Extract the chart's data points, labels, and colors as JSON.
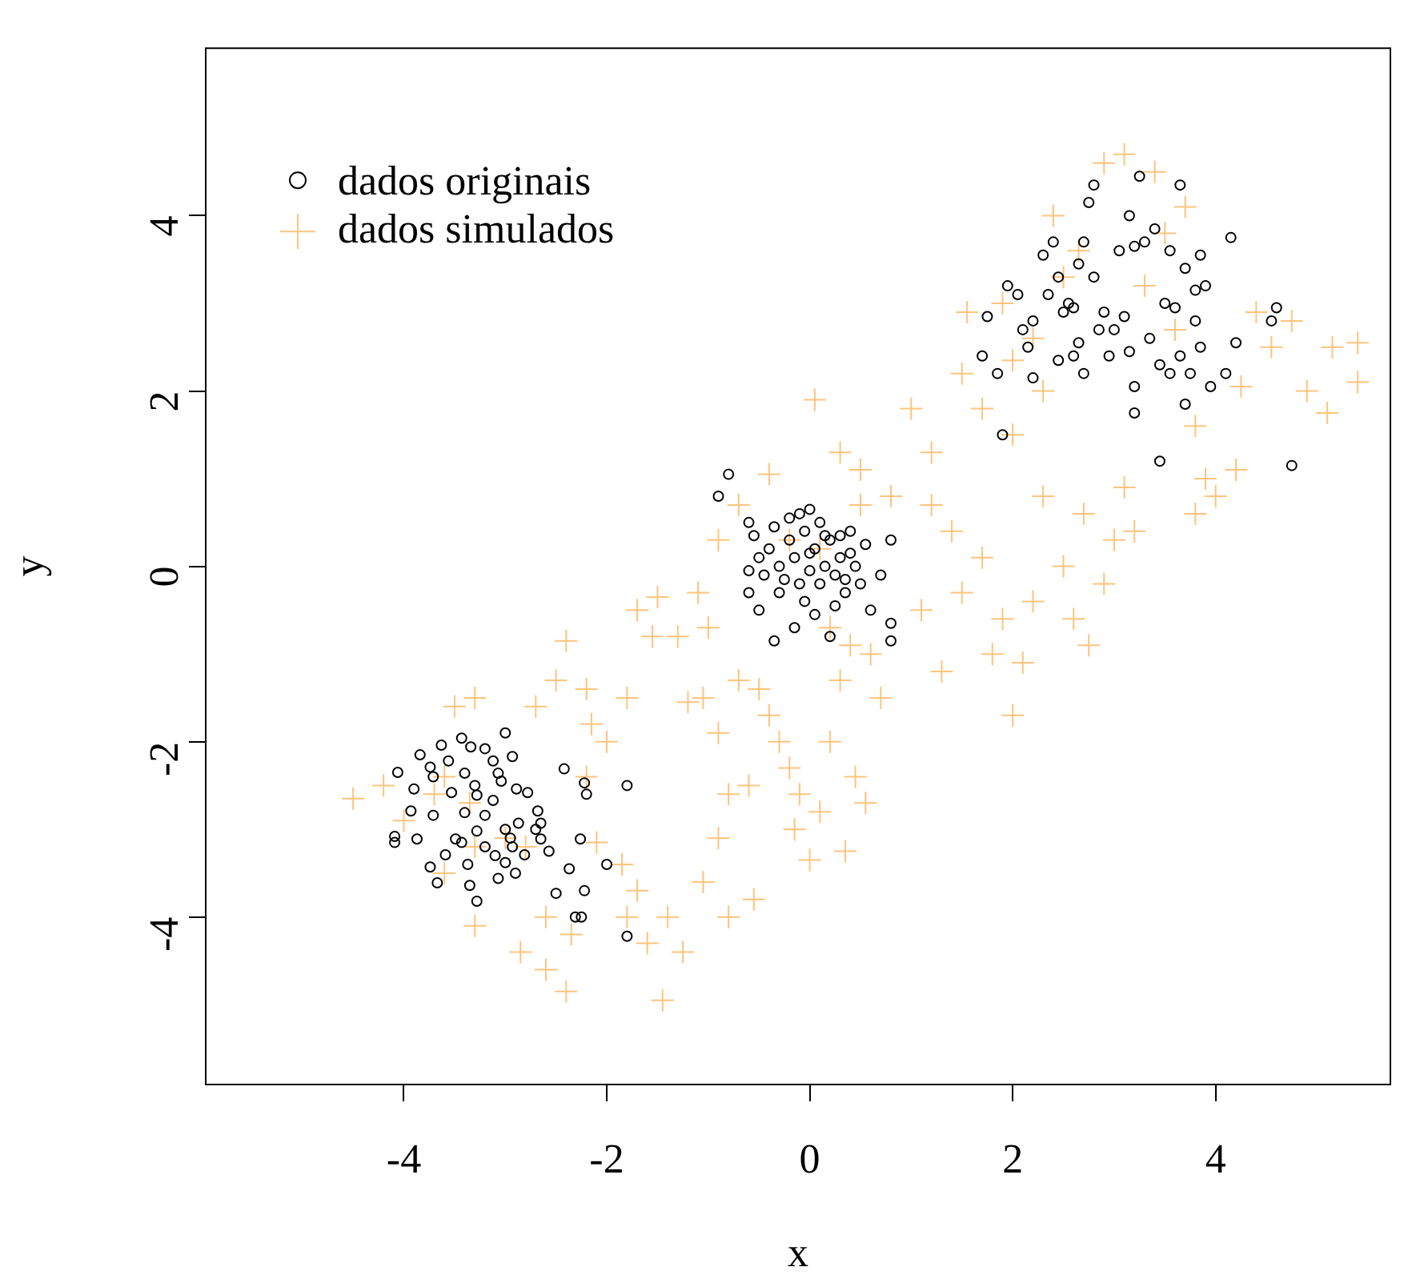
{
  "chart_data": {
    "type": "scatter",
    "xlabel": "x",
    "ylabel": "y",
    "xlim": [
      -5.96,
      5.73
    ],
    "ylim": [
      -5.92,
      5.92
    ],
    "xticks": [
      -4,
      -2,
      0,
      2,
      4
    ],
    "yticks": [
      -4,
      -2,
      0,
      2,
      4
    ],
    "legend": "top left",
    "series": [
      {
        "name": "dados originais",
        "color": "#000000",
        "marker": "circle",
        "x": [
          -4.09,
          -4.09,
          -4.06,
          -3.84,
          -3.74,
          -3.71,
          -3.9,
          -3.56,
          -3.43,
          -3.4,
          -3.34,
          -3.28,
          -3.2,
          -3.12,
          -3.07,
          -3.0,
          -2.93,
          -2.89,
          -2.78,
          -2.68,
          -2.65,
          -2.57,
          -2.42,
          -2.5,
          -2.31,
          -2.37,
          -2.22,
          -2.26,
          -3.87,
          -3.74,
          -3.67,
          -3.59,
          -3.43,
          -3.37,
          -3.28,
          -3.2,
          -3.12,
          -3.07,
          -3.0,
          -2.93,
          -2.87,
          -2.81,
          -2.65,
          -3.49,
          -3.35,
          -3.28,
          -3.4,
          -3.53,
          -3.71,
          -3.93,
          -3.63,
          -3.04,
          -1.8,
          -1.8,
          -2.22,
          -2.25,
          -2.0,
          -2.2,
          -2.9,
          -3.0,
          -2.95,
          -3.1,
          -3.2,
          -2.7,
          -3.3,
          -0.9,
          -0.8,
          -0.6,
          -0.55,
          -0.5,
          -0.45,
          -0.4,
          -0.35,
          -0.3,
          -0.3,
          -0.25,
          -0.2,
          -0.15,
          -0.1,
          -0.1,
          -0.05,
          0.0,
          0.0,
          0.05,
          0.1,
          0.1,
          0.15,
          0.2,
          0.25,
          0.3,
          0.3,
          0.35,
          0.4,
          0.45,
          0.5,
          0.55,
          0.6,
          0.7,
          0.8,
          0.8,
          0.8,
          -0.5,
          -0.35,
          -0.15,
          0.2,
          0.05,
          -0.6,
          -0.6,
          0.25,
          0.4,
          0.15,
          -0.2,
          0.0,
          0.35,
          -0.05,
          1.9,
          1.7,
          1.75,
          1.85,
          1.95,
          2.05,
          2.1,
          2.15,
          2.2,
          2.2,
          2.3,
          2.35,
          2.4,
          2.45,
          2.5,
          2.55,
          2.6,
          2.65,
          2.65,
          2.7,
          2.7,
          2.75,
          2.8,
          2.8,
          2.9,
          2.95,
          3.05,
          3.1,
          3.15,
          3.15,
          3.2,
          3.2,
          3.2,
          3.25,
          3.3,
          3.4,
          3.45,
          3.45,
          3.55,
          3.55,
          3.65,
          3.65,
          3.7,
          3.7,
          3.75,
          3.8,
          3.8,
          3.85,
          3.85,
          3.9,
          3.95,
          4.1,
          4.15,
          4.2,
          4.55,
          4.6,
          4.75,
          2.45,
          2.6,
          3.0,
          3.35,
          3.5,
          2.85,
          3.6
        ],
        "values": [
          -3.08,
          -3.15,
          -2.35,
          -2.15,
          -2.29,
          -2.4,
          -2.54,
          -2.22,
          -1.96,
          -2.36,
          -2.06,
          -2.61,
          -2.08,
          -2.22,
          -2.36,
          -1.9,
          -2.17,
          -2.54,
          -2.58,
          -2.79,
          -2.93,
          -3.25,
          -2.31,
          -3.73,
          -4.0,
          -3.45,
          -2.47,
          -3.11,
          -3.11,
          -3.43,
          -3.61,
          -3.29,
          -3.15,
          -3.4,
          -3.02,
          -2.84,
          -2.67,
          -3.56,
          -3.38,
          -3.2,
          -2.93,
          -3.29,
          -3.11,
          -3.11,
          -3.64,
          -3.82,
          -2.81,
          -2.58,
          -2.84,
          -2.79,
          -2.04,
          -2.45,
          -2.5,
          -4.22,
          -3.7,
          -4.0,
          -3.4,
          -2.6,
          -3.5,
          -3.0,
          -3.1,
          -3.3,
          -3.2,
          -3.0,
          -2.5,
          0.8,
          1.05,
          0.5,
          0.35,
          0.1,
          -0.1,
          0.2,
          0.45,
          -0.3,
          0.0,
          -0.15,
          0.3,
          0.1,
          -0.2,
          0.6,
          0.4,
          0.65,
          -0.05,
          0.2,
          -0.2,
          0.5,
          0.0,
          0.3,
          -0.1,
          0.35,
          0.1,
          -0.3,
          0.4,
          0.0,
          -0.2,
          0.25,
          -0.5,
          -0.1,
          0.3,
          -0.65,
          -0.85,
          -0.5,
          -0.85,
          -0.7,
          -0.8,
          -0.55,
          -0.3,
          -0.05,
          -0.45,
          0.15,
          0.35,
          0.55,
          0.15,
          -0.15,
          -0.4,
          1.5,
          2.4,
          2.85,
          2.2,
          3.2,
          3.1,
          2.7,
          2.5,
          2.8,
          2.15,
          3.55,
          3.1,
          3.7,
          2.35,
          2.9,
          3.0,
          2.4,
          2.55,
          3.45,
          3.7,
          2.2,
          4.15,
          4.35,
          3.3,
          2.9,
          2.4,
          3.6,
          2.85,
          2.45,
          4.0,
          3.65,
          1.75,
          2.05,
          4.45,
          3.7,
          3.85,
          2.3,
          1.2,
          2.2,
          3.6,
          4.35,
          2.4,
          3.4,
          1.85,
          2.2,
          2.8,
          3.15,
          2.5,
          3.55,
          3.2,
          2.05,
          2.2,
          3.75,
          2.55,
          2.8,
          2.95,
          1.15,
          3.3,
          2.95,
          2.7,
          2.6,
          3.0,
          2.7,
          2.95
        ]
      },
      {
        "name": "dados simulados",
        "color": "#ffc47d",
        "marker": "cross",
        "x": [
          -4.5,
          -4.2,
          -4.0,
          -3.7,
          -3.6,
          -3.5,
          -3.3,
          -3.35,
          -3.3,
          -3.3,
          -3.6,
          -3.0,
          -2.8,
          -2.85,
          -2.6,
          -2.4,
          -2.35,
          -2.6,
          -2.7,
          -2.5,
          -2.4,
          -2.2,
          -2.15,
          -2.0,
          -2.2,
          -2.1,
          -1.85,
          -1.7,
          -1.8,
          -1.6,
          -1.45,
          -1.4,
          -1.25,
          -1.05,
          -0.9,
          -0.8,
          -0.55,
          -0.6,
          -0.8,
          -0.9,
          -1.05,
          -1.2,
          -1.5,
          -1.55,
          -1.8,
          -1.7,
          -1.3,
          -1.0,
          -1.1,
          -0.9,
          -0.7,
          -0.7,
          -0.5,
          -0.4,
          -0.3,
          -0.2,
          -0.1,
          -0.15,
          0.0,
          0.1,
          0.2,
          0.35,
          0.45,
          0.55,
          0.7,
          0.6,
          0.3,
          0.2,
          0.4,
          -0.4,
          -0.2,
          0.1,
          0.05,
          0.3,
          0.5,
          0.5,
          0.8,
          1.0,
          1.2,
          1.2,
          1.1,
          1.3,
          1.5,
          1.4,
          1.5,
          1.55,
          1.7,
          1.7,
          1.9,
          1.8,
          2.0,
          2.1,
          2.2,
          2.3,
          2.5,
          2.6,
          2.75,
          2.9,
          3.0,
          3.1,
          3.2,
          2.7,
          2.0,
          2.2,
          2.5,
          2.4,
          2.65,
          2.9,
          3.1,
          3.4,
          3.7,
          3.3,
          3.6,
          3.8,
          3.9,
          3.8,
          4.0,
          4.2,
          4.25,
          4.4,
          4.55,
          4.75,
          4.9,
          5.1,
          5.15,
          5.4,
          5.4,
          3.5,
          2.3,
          2.0,
          1.9
        ],
        "values": [
          -2.65,
          -2.5,
          -2.9,
          -2.6,
          -2.4,
          -1.6,
          -1.5,
          -2.7,
          -3.2,
          -4.1,
          -3.5,
          -3.1,
          -3.2,
          -4.4,
          -4.6,
          -4.85,
          -4.2,
          -4.0,
          -1.6,
          -1.3,
          -0.85,
          -1.4,
          -1.8,
          -2.0,
          -2.4,
          -3.15,
          -3.4,
          -3.7,
          -4.0,
          -4.3,
          -4.95,
          -4.0,
          -4.4,
          -3.6,
          -3.1,
          -4.0,
          -3.8,
          -2.5,
          -2.6,
          -1.9,
          -1.5,
          -1.55,
          -0.35,
          -0.8,
          -1.5,
          -0.5,
          -0.8,
          -0.7,
          -0.3,
          0.3,
          0.7,
          -1.3,
          -1.4,
          -1.7,
          -2.0,
          -2.3,
          -2.6,
          -3.0,
          -3.35,
          -2.8,
          -2.0,
          -3.25,
          -2.4,
          -2.7,
          -1.5,
          -1.0,
          -1.3,
          -0.7,
          -0.9,
          1.05,
          0.3,
          0.2,
          1.9,
          1.3,
          1.1,
          0.7,
          0.8,
          1.8,
          1.3,
          0.7,
          -0.5,
          -1.2,
          -0.3,
          0.4,
          2.2,
          2.9,
          1.8,
          0.1,
          -0.6,
          -1.0,
          -1.7,
          -1.1,
          -0.4,
          0.8,
          0.0,
          -0.6,
          -0.9,
          -0.2,
          0.3,
          0.9,
          0.4,
          0.6,
          1.5,
          2.6,
          3.3,
          4.0,
          3.6,
          4.6,
          4.7,
          4.5,
          4.1,
          3.2,
          2.7,
          1.6,
          1.0,
          0.6,
          0.8,
          1.1,
          2.05,
          2.9,
          2.5,
          2.8,
          2.0,
          1.75,
          2.5,
          2.55,
          2.1,
          3.8,
          2.0,
          2.35,
          3.0
        ]
      }
    ]
  }
}
